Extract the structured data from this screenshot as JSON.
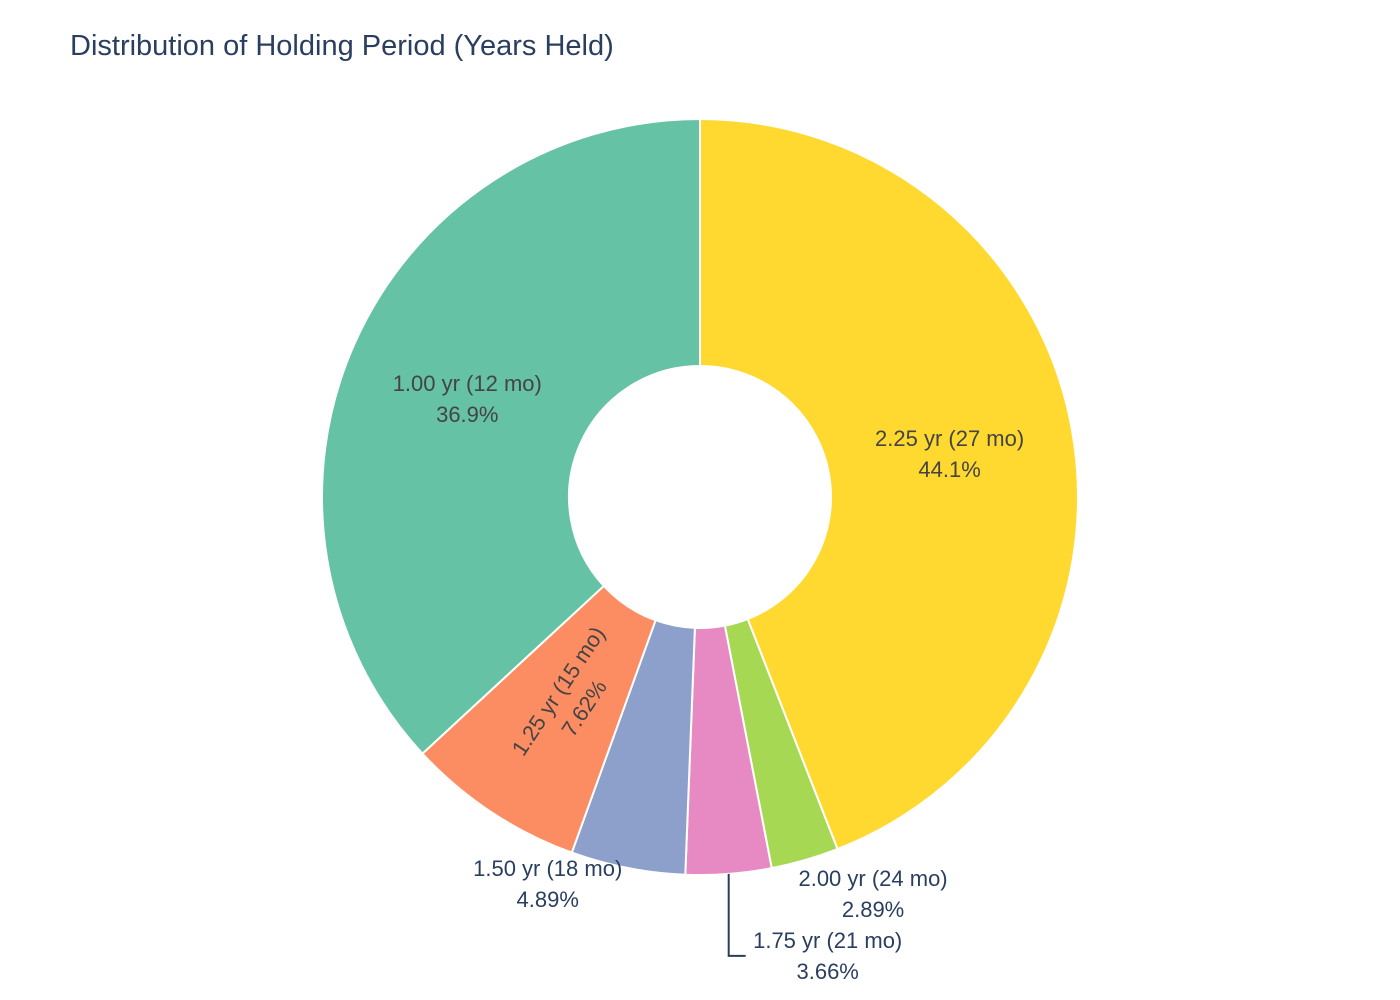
{
  "chart_data": {
    "type": "pie",
    "title": "Distribution of Holding Period (Years Held)",
    "hole": true,
    "direction": "clockwise",
    "slices": [
      {
        "label": "2.25 yr (27 mo)",
        "value": 44.1,
        "percent_text": "44.1%",
        "color": "#FFD92F"
      },
      {
        "label": "2.00 yr (24 mo)",
        "value": 2.89,
        "percent_text": "2.89%",
        "color": "#A6D854"
      },
      {
        "label": "1.75 yr (21 mo)",
        "value": 3.66,
        "percent_text": "3.66%",
        "color": "#E78AC3"
      },
      {
        "label": "1.50 yr (18 mo)",
        "value": 4.89,
        "percent_text": "4.89%",
        "color": "#8DA0CB"
      },
      {
        "label": "1.25 yr (15 mo)",
        "value": 7.62,
        "percent_text": "7.62%",
        "color": "#FC8D62"
      },
      {
        "label": "1.00 yr (12 mo)",
        "value": 36.9,
        "percent_text": "36.9%",
        "color": "#66C2A5"
      }
    ]
  }
}
